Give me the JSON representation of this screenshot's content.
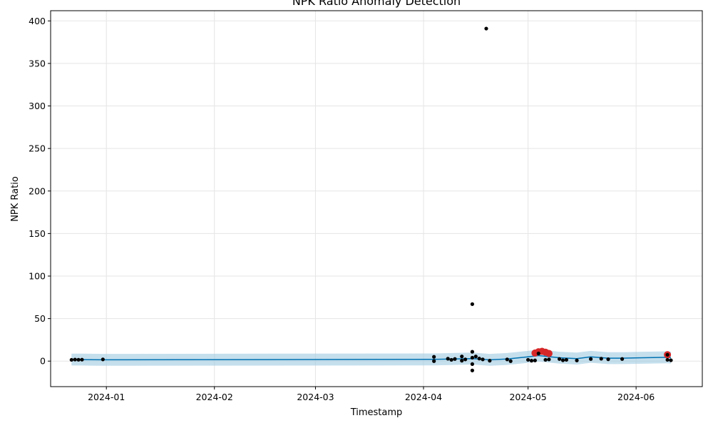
{
  "chart_data": {
    "type": "scatter",
    "title": "NPK Ratio Anomaly Detection",
    "xlabel": "Timestamp",
    "ylabel": "NPK Ratio",
    "xlim": [
      "2023-12-16",
      "2024-06-20"
    ],
    "ylim": [
      -30,
      412
    ],
    "grid": true,
    "x_ticks": [
      "2024-01",
      "2024-02",
      "2024-03",
      "2024-04",
      "2024-05",
      "2024-06"
    ],
    "y_ticks": [
      0,
      50,
      100,
      150,
      200,
      250,
      300,
      350,
      400
    ],
    "colors": {
      "observed": "#000000",
      "forecast": "#0072b2",
      "interval": "#9ecae1",
      "anomaly": "#d62728",
      "grid": "#e5e5e5"
    },
    "series": [
      {
        "role": "observed",
        "points": [
          [
            "2023-12-22",
            1.5
          ],
          [
            "2023-12-23",
            1.8
          ],
          [
            "2023-12-24",
            1.6
          ],
          [
            "2023-12-25",
            1.7
          ],
          [
            "2023-12-31",
            2.0
          ],
          [
            "2024-04-04",
            5.0
          ],
          [
            "2024-04-04",
            0.0
          ],
          [
            "2024-04-08",
            2.8
          ],
          [
            "2024-04-09",
            1.5
          ],
          [
            "2024-04-10",
            2.5
          ],
          [
            "2024-04-12",
            5.5
          ],
          [
            "2024-04-12",
            0.5
          ],
          [
            "2024-04-13",
            2.0
          ],
          [
            "2024-04-15",
            67.0
          ],
          [
            "2024-04-15",
            11.0
          ],
          [
            "2024-04-15",
            -3.5
          ],
          [
            "2024-04-15",
            -11.0
          ],
          [
            "2024-04-15",
            4.0
          ],
          [
            "2024-04-16",
            5.5
          ],
          [
            "2024-04-17",
            3.0
          ],
          [
            "2024-04-18",
            2.0
          ],
          [
            "2024-04-19",
            391.0
          ],
          [
            "2024-04-20",
            0.5
          ],
          [
            "2024-04-25",
            2.0
          ],
          [
            "2024-04-26",
            0.0
          ],
          [
            "2024-05-01",
            1.5
          ],
          [
            "2024-05-02",
            0.5
          ],
          [
            "2024-05-03",
            0.8
          ],
          [
            "2024-05-04",
            9.0
          ],
          [
            "2024-05-06",
            1.5
          ],
          [
            "2024-05-07",
            2.0
          ],
          [
            "2024-05-10",
            2.5
          ],
          [
            "2024-05-11",
            1.0
          ],
          [
            "2024-05-12",
            1.5
          ],
          [
            "2024-05-15",
            0.8
          ],
          [
            "2024-05-19",
            2.5
          ],
          [
            "2024-05-22",
            2.8
          ],
          [
            "2024-05-24",
            2.2
          ],
          [
            "2024-05-28",
            2.5
          ],
          [
            "2024-06-10",
            7.5
          ],
          [
            "2024-06-10",
            1.5
          ],
          [
            "2024-06-11",
            1.0
          ]
        ]
      },
      {
        "role": "forecast",
        "points": [
          [
            "2023-12-22",
            1.8
          ],
          [
            "2023-12-25",
            1.8
          ],
          [
            "2023-12-31",
            1.5
          ],
          [
            "2024-04-04",
            2.0
          ],
          [
            "2024-04-15",
            3.0
          ],
          [
            "2024-04-20",
            1.5
          ],
          [
            "2024-04-25",
            2.5
          ],
          [
            "2024-05-01",
            5.0
          ],
          [
            "2024-05-04",
            6.5
          ],
          [
            "2024-05-10",
            4.0
          ],
          [
            "2024-05-15",
            3.0
          ],
          [
            "2024-05-19",
            5.0
          ],
          [
            "2024-05-24",
            3.5
          ],
          [
            "2024-05-28",
            3.5
          ],
          [
            "2024-06-10",
            4.5
          ],
          [
            "2024-06-11",
            4.0
          ]
        ],
        "band": 7
      },
      {
        "role": "anomaly",
        "points": [
          [
            "2024-05-03",
            9.5
          ],
          [
            "2024-05-04",
            11.0
          ],
          [
            "2024-05-05",
            11.5
          ],
          [
            "2024-05-06",
            10.5
          ],
          [
            "2024-05-07",
            9.0
          ],
          [
            "2024-06-10",
            7.5
          ]
        ]
      }
    ]
  }
}
